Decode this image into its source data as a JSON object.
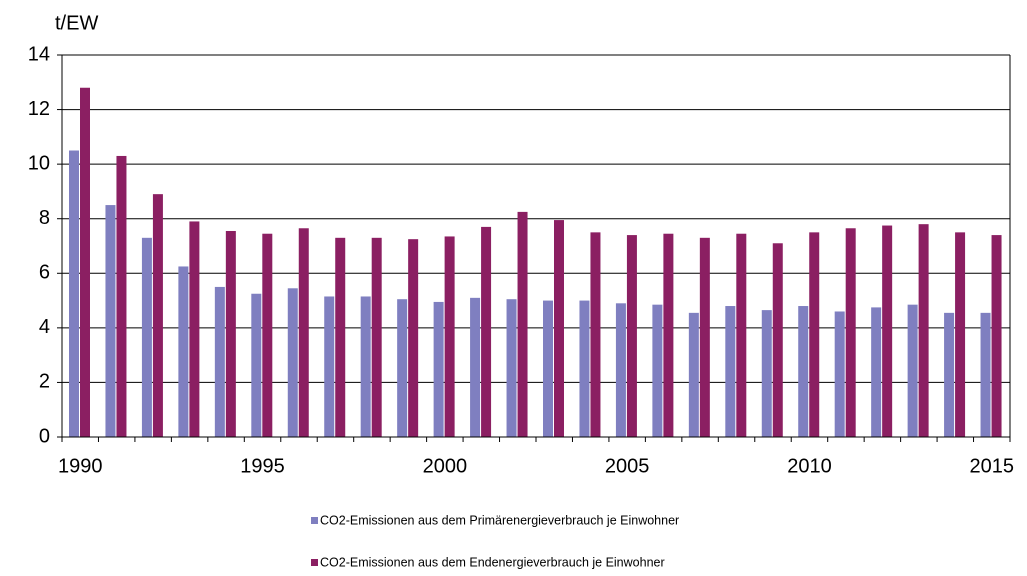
{
  "chart_data": {
    "type": "bar",
    "y_label": "t/EW",
    "categories": [
      "1990",
      null,
      null,
      null,
      null,
      "1995",
      null,
      null,
      null,
      null,
      "2000",
      null,
      null,
      null,
      null,
      "2005",
      null,
      null,
      null,
      null,
      "2010",
      null,
      null,
      null,
      null,
      "2015"
    ],
    "series": [
      {
        "name": "CO2-Emissionen aus dem Primärenergieverbrauch je Einwohner",
        "color": "#7f7fc0",
        "values": [
          10.5,
          8.5,
          7.3,
          6.25,
          5.5,
          5.25,
          5.45,
          5.15,
          5.15,
          5.05,
          4.95,
          5.1,
          5.05,
          5.0,
          5.0,
          4.9,
          4.85,
          4.55,
          4.8,
          4.65,
          4.8,
          4.6,
          4.75,
          4.85,
          4.55,
          4.55
        ]
      },
      {
        "name": "CO2-Emissionen aus dem Endenergieverbrauch je Einwohner",
        "color": "#8b1f62",
        "values": [
          12.8,
          10.3,
          8.9,
          7.9,
          7.55,
          7.45,
          7.65,
          7.3,
          7.3,
          7.25,
          7.35,
          7.7,
          8.25,
          7.95,
          7.5,
          7.4,
          7.45,
          7.3,
          7.45,
          7.1,
          7.5,
          7.65,
          7.75,
          7.8,
          7.5,
          7.4
        ]
      }
    ],
    "ylim": [
      0,
      14
    ],
    "yticks": [
      0,
      2,
      4,
      6,
      8,
      10,
      12,
      14
    ],
    "grid": true,
    "legend": "bottom"
  }
}
